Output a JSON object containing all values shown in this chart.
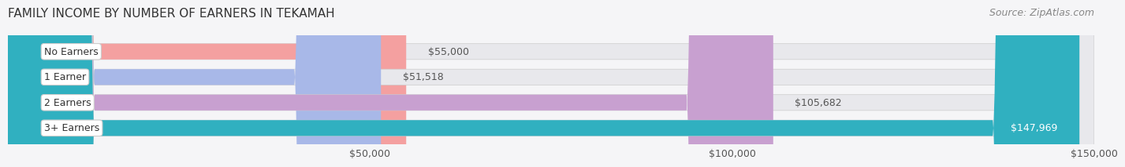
{
  "title": "FAMILY INCOME BY NUMBER OF EARNERS IN TEKAMAH",
  "source": "Source: ZipAtlas.com",
  "categories": [
    "No Earners",
    "1 Earner",
    "2 Earners",
    "3+ Earners"
  ],
  "values": [
    55000,
    51518,
    105682,
    147969
  ],
  "labels": [
    "$55,000",
    "$51,518",
    "$105,682",
    "$147,969"
  ],
  "bar_colors": [
    "#f4a0a0",
    "#a8b8e8",
    "#c8a0d0",
    "#30b0c0"
  ],
  "bar_bg_color": "#e8e8ec",
  "label_bg_color": "#ffffff",
  "xlim": [
    0,
    150000
  ],
  "xticks": [
    50000,
    100000,
    150000
  ],
  "xtick_labels": [
    "$50,000",
    "$100,000",
    "$150,000"
  ],
  "title_fontsize": 11,
  "source_fontsize": 9,
  "label_fontsize": 9,
  "category_fontsize": 9,
  "background_color": "#f5f5f7",
  "bar_height": 0.62,
  "bar_edge_color": "#cccccc"
}
